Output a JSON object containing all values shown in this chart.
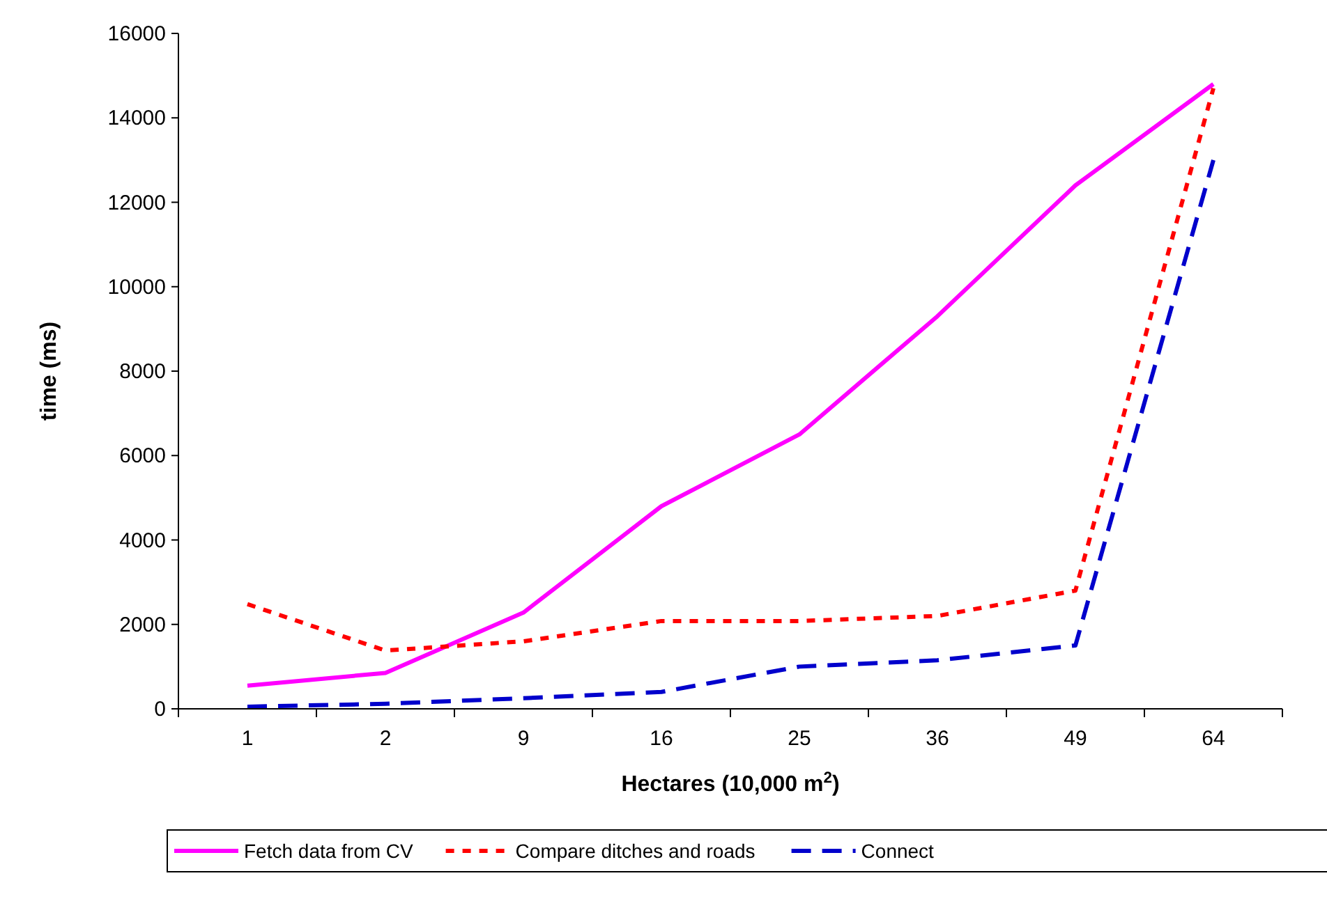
{
  "chart_data": {
    "type": "line",
    "xlabel": "Hectares (10,000 m$^{2}$)",
    "ylabel": "time (ms)",
    "categories": [
      "1",
      "2",
      "9",
      "16",
      "25",
      "36",
      "49",
      "64"
    ],
    "series": [
      {
        "name": "Fetch data from CV",
        "color": "#ff00ff",
        "line_style": "solid",
        "values": [
          550,
          850,
          2280,
          4800,
          6500,
          9300,
          12400,
          14800
        ]
      },
      {
        "name": "Compare ditches and roads",
        "color": "#ff0000",
        "line_style": "dotted",
        "values": [
          2480,
          1380,
          1600,
          2080,
          2080,
          2200,
          2800,
          14700
        ]
      },
      {
        "name": "Connect",
        "color": "#0000cc",
        "line_style": "dashed",
        "values": [
          50,
          120,
          250,
          400,
          1000,
          1150,
          1500,
          13000
        ]
      }
    ],
    "ylim": [
      0,
      16000
    ],
    "yticks": [
      0,
      2000,
      4000,
      6000,
      8000,
      10000,
      12000,
      14000,
      16000
    ],
    "grid": false,
    "marker": "none",
    "legend": "bottom"
  }
}
